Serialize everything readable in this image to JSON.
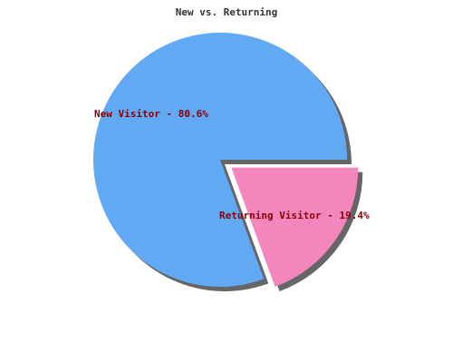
{
  "chart_data": {
    "type": "pie",
    "title": "New vs. Returning",
    "labels": [
      "New Visitor",
      "Returning Visitor"
    ],
    "values": [
      80.6,
      19.4
    ],
    "unit": "%",
    "slice_labels": [
      "New Visitor - 80.6%",
      "Returning Visitor - 19.4%"
    ],
    "colors": [
      "#62a9f3",
      "#f286bd"
    ],
    "label_color": "#8b0000",
    "shadow_color": "#666666",
    "exploded": [
      false,
      true
    ],
    "legend": "none"
  }
}
